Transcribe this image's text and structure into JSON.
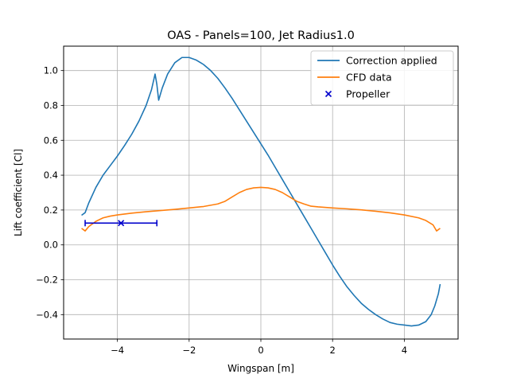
{
  "chart_data": {
    "type": "line",
    "title": "OAS - Panels=100, Jet Radius1.0",
    "xlabel": "Wingspan [m]",
    "ylabel": "Lift coefficient [Cl]",
    "xlim": [
      -5.5,
      5.5
    ],
    "ylim": [
      -0.54,
      1.14
    ],
    "xticks": [
      -4,
      -2,
      0,
      2,
      4
    ],
    "xtick_labels": [
      "−4",
      "−2",
      "0",
      "2",
      "4"
    ],
    "yticks": [
      -0.4,
      -0.2,
      0.0,
      0.2,
      0.4,
      0.6,
      0.8,
      1.0
    ],
    "ytick_labels": [
      "−0.4",
      "−0.2",
      "0.0",
      "0.2",
      "0.4",
      "0.6",
      "0.8",
      "1.0"
    ],
    "grid": true,
    "legend_position": "top-right",
    "series": [
      {
        "name": "Correction applied",
        "color": "#1f77b4",
        "marker": "none",
        "points": [
          [
            -5.0,
            0.17
          ],
          [
            -4.9,
            0.185
          ],
          [
            -4.8,
            0.24
          ],
          [
            -4.6,
            0.33
          ],
          [
            -4.4,
            0.4
          ],
          [
            -4.2,
            0.455
          ],
          [
            -4.0,
            0.51
          ],
          [
            -3.8,
            0.57
          ],
          [
            -3.6,
            0.635
          ],
          [
            -3.4,
            0.71
          ],
          [
            -3.2,
            0.8
          ],
          [
            -3.05,
            0.89
          ],
          [
            -2.95,
            0.98
          ],
          [
            -2.9,
            0.92
          ],
          [
            -2.85,
            0.83
          ],
          [
            -2.75,
            0.9
          ],
          [
            -2.6,
            0.98
          ],
          [
            -2.4,
            1.045
          ],
          [
            -2.2,
            1.075
          ],
          [
            -2.0,
            1.075
          ],
          [
            -1.8,
            1.06
          ],
          [
            -1.6,
            1.035
          ],
          [
            -1.4,
            1.0
          ],
          [
            -1.2,
            0.955
          ],
          [
            -1.0,
            0.9
          ],
          [
            -0.8,
            0.84
          ],
          [
            -0.6,
            0.775
          ],
          [
            -0.4,
            0.71
          ],
          [
            -0.2,
            0.645
          ],
          [
            0.0,
            0.58
          ],
          [
            0.2,
            0.515
          ],
          [
            0.4,
            0.445
          ],
          [
            0.6,
            0.375
          ],
          [
            0.8,
            0.305
          ],
          [
            1.0,
            0.235
          ],
          [
            1.2,
            0.165
          ],
          [
            1.4,
            0.095
          ],
          [
            1.6,
            0.025
          ],
          [
            1.8,
            -0.045
          ],
          [
            2.0,
            -0.115
          ],
          [
            2.2,
            -0.18
          ],
          [
            2.4,
            -0.24
          ],
          [
            2.6,
            -0.29
          ],
          [
            2.8,
            -0.335
          ],
          [
            3.0,
            -0.37
          ],
          [
            3.2,
            -0.4
          ],
          [
            3.4,
            -0.425
          ],
          [
            3.6,
            -0.445
          ],
          [
            3.8,
            -0.455
          ],
          [
            4.0,
            -0.46
          ],
          [
            4.2,
            -0.465
          ],
          [
            4.4,
            -0.46
          ],
          [
            4.6,
            -0.44
          ],
          [
            4.75,
            -0.4
          ],
          [
            4.85,
            -0.35
          ],
          [
            4.95,
            -0.28
          ],
          [
            5.0,
            -0.225
          ]
        ]
      },
      {
        "name": "CFD data",
        "color": "#ff7f0e",
        "marker": "none",
        "points": [
          [
            -5.0,
            0.095
          ],
          [
            -4.9,
            0.08
          ],
          [
            -4.8,
            0.105
          ],
          [
            -4.6,
            0.135
          ],
          [
            -4.4,
            0.155
          ],
          [
            -4.2,
            0.165
          ],
          [
            -4.0,
            0.172
          ],
          [
            -3.6,
            0.182
          ],
          [
            -3.2,
            0.19
          ],
          [
            -2.8,
            0.197
          ],
          [
            -2.4,
            0.204
          ],
          [
            -2.0,
            0.212
          ],
          [
            -1.6,
            0.22
          ],
          [
            -1.2,
            0.235
          ],
          [
            -1.0,
            0.25
          ],
          [
            -0.8,
            0.275
          ],
          [
            -0.6,
            0.3
          ],
          [
            -0.4,
            0.318
          ],
          [
            -0.2,
            0.327
          ],
          [
            0.0,
            0.33
          ],
          [
            0.2,
            0.327
          ],
          [
            0.4,
            0.318
          ],
          [
            0.6,
            0.3
          ],
          [
            0.8,
            0.275
          ],
          [
            1.0,
            0.25
          ],
          [
            1.2,
            0.235
          ],
          [
            1.4,
            0.222
          ],
          [
            1.6,
            0.218
          ],
          [
            2.0,
            0.212
          ],
          [
            2.4,
            0.207
          ],
          [
            2.8,
            0.201
          ],
          [
            3.2,
            0.193
          ],
          [
            3.6,
            0.184
          ],
          [
            4.0,
            0.172
          ],
          [
            4.4,
            0.155
          ],
          [
            4.6,
            0.14
          ],
          [
            4.8,
            0.115
          ],
          [
            4.9,
            0.08
          ],
          [
            5.0,
            0.095
          ]
        ]
      },
      {
        "name": "Propeller",
        "color": "#0000cc",
        "marker": "x",
        "points": [
          [
            -3.9,
            0.125
          ]
        ],
        "xerr": [
          [
            -4.9,
            -2.9
          ]
        ]
      }
    ]
  }
}
